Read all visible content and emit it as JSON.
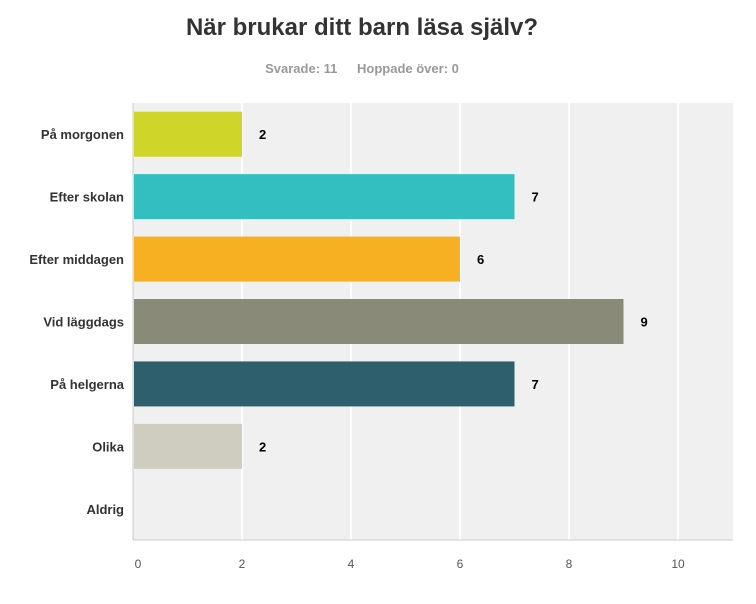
{
  "header": {
    "title": "När brukar ditt barn läsa själv?",
    "answered": "Svarade: 11",
    "skipped": "Hoppade över: 0"
  },
  "chart_data": {
    "type": "bar",
    "orientation": "horizontal",
    "title": "När brukar ditt barn läsa själv?",
    "categories": [
      "På morgonen",
      "Efter skolan",
      "Efter middagen",
      "Vid läggdags",
      "På helgerna",
      "Olika",
      "Aldrig"
    ],
    "values": [
      2,
      7,
      6,
      9,
      7,
      2,
      0
    ],
    "colors": [
      "#d0d52a",
      "#33bec0",
      "#f6b022",
      "#8a8a78",
      "#2e5f6c",
      "#cfcdbf",
      "#cccccc"
    ],
    "xlim": [
      0,
      11
    ],
    "xticks": [
      0,
      2,
      4,
      6,
      8,
      10
    ],
    "grid": true,
    "legend": "none",
    "background": "#f0f0f0"
  }
}
